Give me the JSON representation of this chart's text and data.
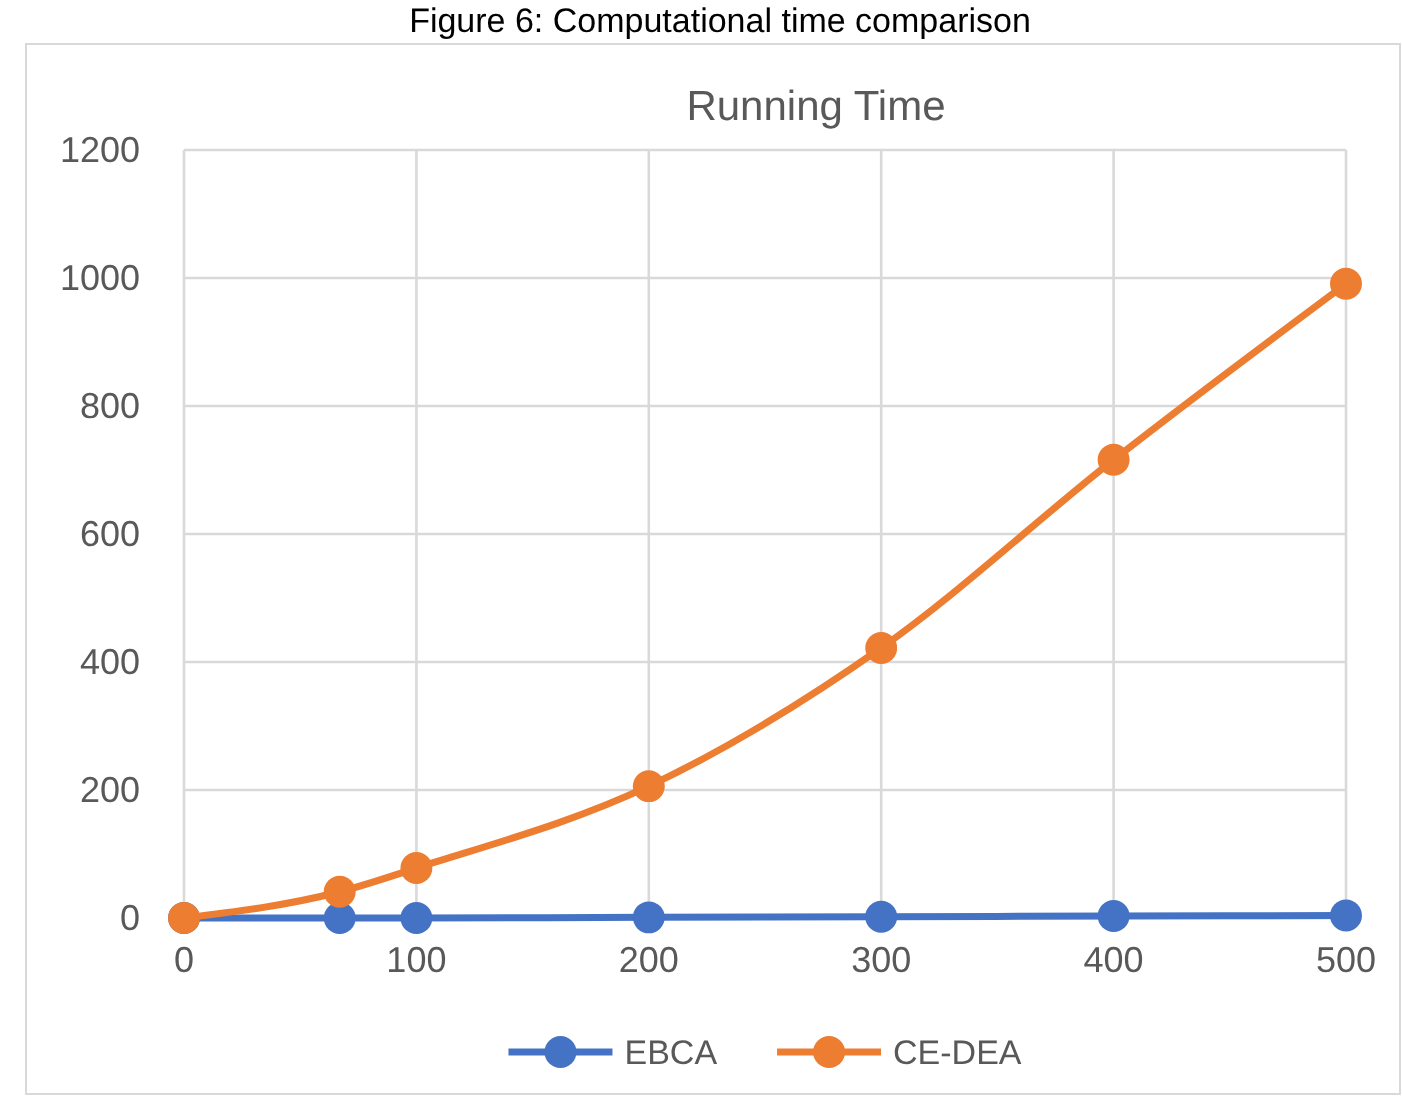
{
  "chart_data": {
    "type": "line",
    "title": "Running Time",
    "annotations": [
      "Figure 6:  Computational time comparison"
    ],
    "x": [
      0,
      67,
      100,
      200,
      300,
      400,
      500
    ],
    "series": [
      {
        "name": "EBCA",
        "color": "#4472c4",
        "values": [
          0,
          0,
          0,
          1,
          2,
          3,
          4
        ]
      },
      {
        "name": "CE-DEA",
        "color": "#ed7d31",
        "values": [
          0,
          41,
          78,
          206,
          422,
          716,
          991
        ]
      }
    ],
    "xlim": [
      0,
      500
    ],
    "xticks": [
      0,
      100,
      200,
      300,
      400,
      500
    ],
    "ylim": [
      0,
      1200
    ],
    "yticks": [
      0,
      200,
      400,
      600,
      800,
      1000,
      1200
    ],
    "grid": true,
    "legend": "bottom",
    "marker": "circle",
    "line_style": "solid"
  }
}
